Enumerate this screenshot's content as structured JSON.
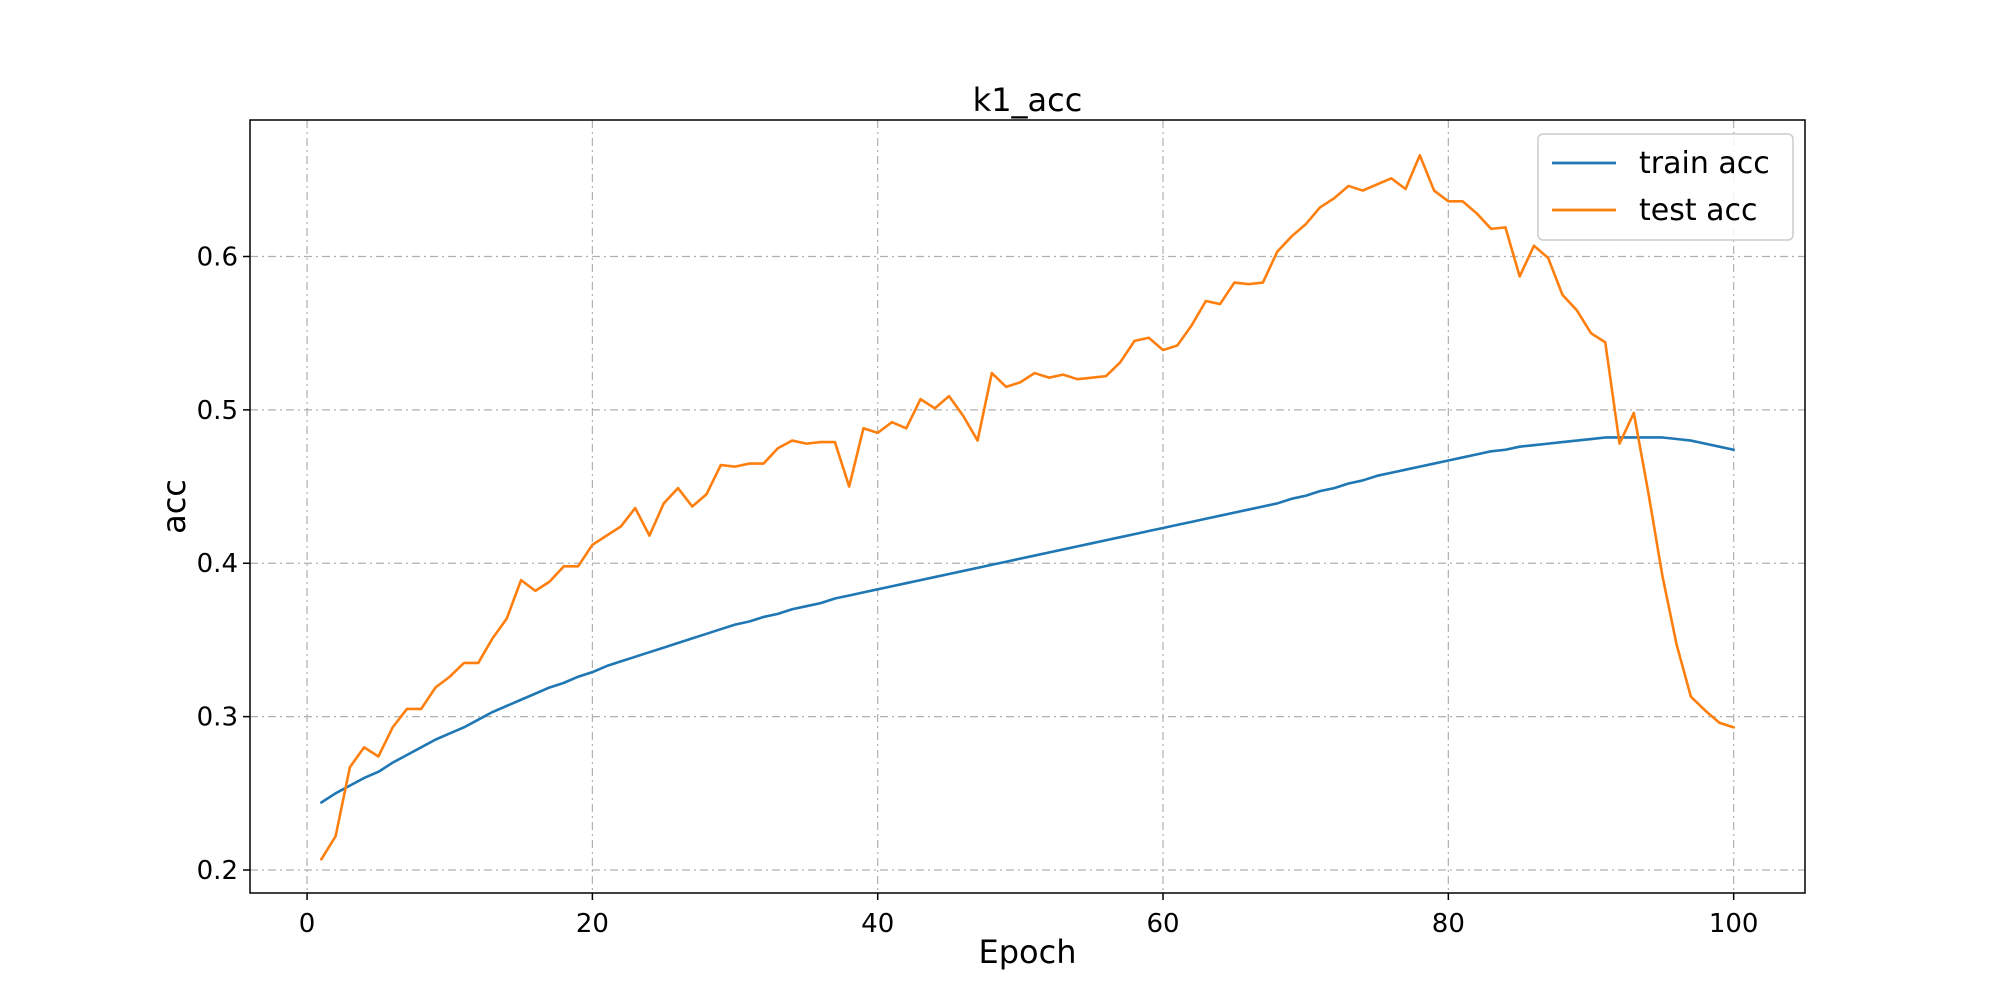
{
  "chart_data": {
    "type": "line",
    "title": "k1_acc",
    "xlabel": "Epoch",
    "ylabel": "acc",
    "xlim": [
      -4,
      105
    ],
    "ylim": [
      0.185,
      0.689
    ],
    "xticks": [
      0,
      20,
      40,
      60,
      80,
      100
    ],
    "yticks": [
      0.2,
      0.3,
      0.4,
      0.5,
      0.6
    ],
    "ytick_labels": [
      "0.2",
      "0.3",
      "0.4",
      "0.5",
      "0.6"
    ],
    "grid": true,
    "legend_position": "upper right",
    "x": [
      1,
      2,
      3,
      4,
      5,
      6,
      7,
      8,
      9,
      10,
      11,
      12,
      13,
      14,
      15,
      16,
      17,
      18,
      19,
      20,
      21,
      22,
      23,
      24,
      25,
      26,
      27,
      28,
      29,
      30,
      31,
      32,
      33,
      34,
      35,
      36,
      37,
      38,
      39,
      40,
      41,
      42,
      43,
      44,
      45,
      46,
      47,
      48,
      49,
      50,
      51,
      52,
      53,
      54,
      55,
      56,
      57,
      58,
      59,
      60,
      61,
      62,
      63,
      64,
      65,
      66,
      67,
      68,
      69,
      70,
      71,
      72,
      73,
      74,
      75,
      76,
      77,
      78,
      79,
      80,
      81,
      82,
      83,
      84,
      85,
      86,
      87,
      88,
      89,
      90,
      91,
      92,
      93,
      94,
      95,
      96,
      97,
      98,
      99,
      100
    ],
    "series": [
      {
        "name": "train acc",
        "color": "#1f77b4",
        "values": [
          0.244,
          0.25,
          0.255,
          0.26,
          0.264,
          0.27,
          0.275,
          0.28,
          0.285,
          0.289,
          0.293,
          0.298,
          0.303,
          0.307,
          0.311,
          0.315,
          0.319,
          0.322,
          0.326,
          0.329,
          0.333,
          0.336,
          0.339,
          0.342,
          0.345,
          0.348,
          0.351,
          0.354,
          0.357,
          0.36,
          0.362,
          0.365,
          0.367,
          0.37,
          0.372,
          0.374,
          0.377,
          0.379,
          0.381,
          0.383,
          0.385,
          0.387,
          0.389,
          0.391,
          0.393,
          0.395,
          0.397,
          0.399,
          0.401,
          0.403,
          0.405,
          0.407,
          0.409,
          0.411,
          0.413,
          0.415,
          0.417,
          0.419,
          0.421,
          0.423,
          0.425,
          0.427,
          0.429,
          0.431,
          0.433,
          0.435,
          0.437,
          0.439,
          0.442,
          0.444,
          0.447,
          0.449,
          0.452,
          0.454,
          0.457,
          0.459,
          0.461,
          0.463,
          0.465,
          0.467,
          0.469,
          0.471,
          0.473,
          0.474,
          0.476,
          0.477,
          0.478,
          0.479,
          0.48,
          0.481,
          0.482,
          0.482,
          0.482,
          0.482,
          0.482,
          0.481,
          0.48,
          0.478,
          0.476,
          0.474
        ]
      },
      {
        "name": "test acc",
        "color": "#ff7f0e",
        "values": [
          0.207,
          0.222,
          0.267,
          0.28,
          0.274,
          0.293,
          0.305,
          0.305,
          0.319,
          0.326,
          0.335,
          0.335,
          0.351,
          0.364,
          0.389,
          0.382,
          0.388,
          0.398,
          0.398,
          0.412,
          0.418,
          0.424,
          0.436,
          0.418,
          0.439,
          0.449,
          0.437,
          0.445,
          0.464,
          0.463,
          0.465,
          0.465,
          0.475,
          0.48,
          0.478,
          0.479,
          0.479,
          0.45,
          0.488,
          0.485,
          0.492,
          0.488,
          0.507,
          0.501,
          0.509,
          0.496,
          0.48,
          0.524,
          0.515,
          0.518,
          0.524,
          0.521,
          0.523,
          0.52,
          0.521,
          0.522,
          0.531,
          0.545,
          0.547,
          0.539,
          0.542,
          0.555,
          0.571,
          0.569,
          0.583,
          0.582,
          0.583,
          0.603,
          0.613,
          0.621,
          0.632,
          0.638,
          0.646,
          0.643,
          0.647,
          0.651,
          0.644,
          0.666,
          0.643,
          0.636,
          0.636,
          0.628,
          0.618,
          0.619,
          0.587,
          0.607,
          0.599,
          0.575,
          0.565,
          0.55,
          0.544,
          0.478,
          0.498,
          0.447,
          0.392,
          0.347,
          0.313,
          0.304,
          0.296,
          0.293
        ]
      }
    ]
  }
}
